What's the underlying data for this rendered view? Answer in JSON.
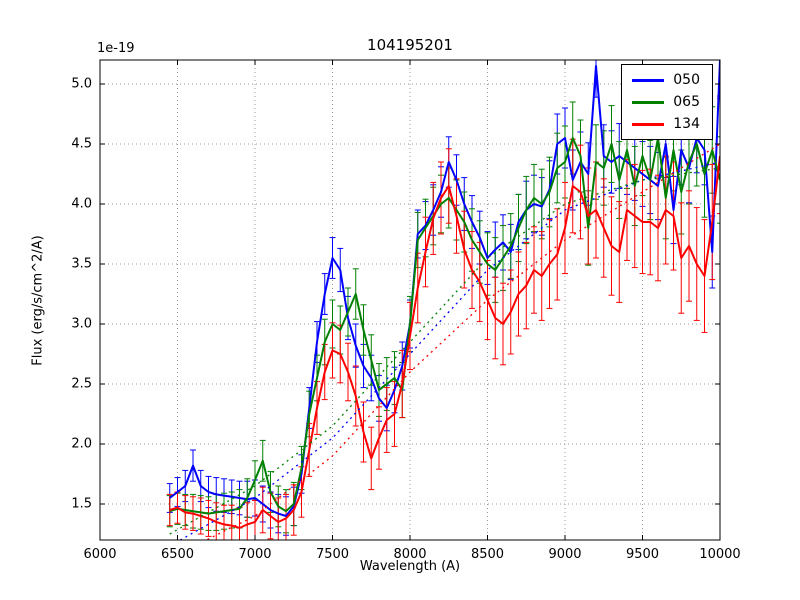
{
  "chart_data": {
    "type": "line",
    "title": "104195201",
    "xlabel": "Wavelength (A)",
    "ylabel": "Flux (erg/s/cm^2/A)",
    "offset_text": "1e-19",
    "xlim": [
      6000,
      10000
    ],
    "ylim": [
      1.2,
      5.2
    ],
    "xticks": [
      6000,
      6500,
      7000,
      7500,
      8000,
      8500,
      9000,
      9500,
      10000
    ],
    "yticks": [
      1.5,
      2.0,
      2.5,
      3.0,
      3.5,
      4.0,
      4.5,
      5.0
    ],
    "grid": true,
    "grid_color": "#9a9a9a",
    "legend_position": "upper right",
    "errorbar_capsize": 3,
    "x": [
      6450,
      6500,
      6550,
      6600,
      6650,
      6700,
      6750,
      6800,
      6850,
      6900,
      6950,
      7000,
      7050,
      7100,
      7150,
      7200,
      7250,
      7300,
      7350,
      7400,
      7450,
      7500,
      7550,
      7600,
      7650,
      7700,
      7750,
      7800,
      7850,
      7900,
      7950,
      8000,
      8050,
      8100,
      8150,
      8200,
      8250,
      8300,
      8350,
      8400,
      8450,
      8500,
      8550,
      8600,
      8650,
      8700,
      8750,
      8800,
      8850,
      8900,
      8950,
      9000,
      9050,
      9100,
      9150,
      9200,
      9250,
      9300,
      9350,
      9400,
      9450,
      9500,
      9550,
      9600,
      9650,
      9700,
      9750,
      9800,
      9850,
      9900,
      9950,
      10000
    ],
    "series": [
      {
        "name": "050",
        "color": "#0000ff",
        "values": [
          1.55,
          1.6,
          1.65,
          1.82,
          1.65,
          1.6,
          1.58,
          1.57,
          1.56,
          1.55,
          1.54,
          1.55,
          1.5,
          1.45,
          1.42,
          1.4,
          1.48,
          1.75,
          2.3,
          2.85,
          3.25,
          3.55,
          3.45,
          3.05,
          2.82,
          2.65,
          2.55,
          2.38,
          2.3,
          2.45,
          2.65,
          3.0,
          3.75,
          3.82,
          3.95,
          4.1,
          4.35,
          4.2,
          4.0,
          3.85,
          3.72,
          3.55,
          3.62,
          3.68,
          3.6,
          3.85,
          3.95,
          4.0,
          3.98,
          4.12,
          4.5,
          4.55,
          4.2,
          4.35,
          4.25,
          5.15,
          4.4,
          4.35,
          4.4,
          4.35,
          4.3,
          4.25,
          4.2,
          4.15,
          4.5,
          3.95,
          4.45,
          4.3,
          4.55,
          4.45,
          3.6,
          5.2
        ],
        "errors": [
          0.12,
          0.12,
          0.13,
          0.13,
          0.13,
          0.13,
          0.14,
          0.14,
          0.14,
          0.14,
          0.15,
          0.15,
          0.15,
          0.15,
          0.16,
          0.16,
          0.16,
          0.16,
          0.17,
          0.17,
          0.17,
          0.17,
          0.18,
          0.18,
          0.18,
          0.18,
          0.19,
          0.19,
          0.19,
          0.19,
          0.2,
          0.2,
          0.2,
          0.2,
          0.21,
          0.21,
          0.21,
          0.21,
          0.22,
          0.22,
          0.22,
          0.22,
          0.23,
          0.23,
          0.23,
          0.23,
          0.24,
          0.24,
          0.24,
          0.24,
          0.25,
          0.25,
          0.25,
          0.25,
          0.26,
          0.26,
          0.26,
          0.26,
          0.27,
          0.27,
          0.27,
          0.27,
          0.28,
          0.28,
          0.28,
          0.28,
          0.29,
          0.29,
          0.29,
          0.29,
          0.3,
          0.3
        ],
        "model": [
          [
            6450,
            1.15
          ],
          [
            7000,
            1.55
          ],
          [
            7500,
            2.05
          ],
          [
            8000,
            2.75
          ],
          [
            8500,
            3.45
          ],
          [
            9000,
            3.95
          ],
          [
            9500,
            4.2
          ],
          [
            10000,
            4.35
          ]
        ]
      },
      {
        "name": "065",
        "color": "#008000",
        "values": [
          1.44,
          1.46,
          1.45,
          1.44,
          1.43,
          1.42,
          1.43,
          1.44,
          1.45,
          1.46,
          1.55,
          1.7,
          1.86,
          1.6,
          1.48,
          1.44,
          1.5,
          1.8,
          2.25,
          2.55,
          2.85,
          3.0,
          2.95,
          3.1,
          3.25,
          2.95,
          2.7,
          2.45,
          2.5,
          2.55,
          2.45,
          3.0,
          3.7,
          3.8,
          3.9,
          4.0,
          4.05,
          3.95,
          3.85,
          3.7,
          3.6,
          3.5,
          3.45,
          3.55,
          3.65,
          3.8,
          3.95,
          4.05,
          4.0,
          4.1,
          4.3,
          4.35,
          4.55,
          4.4,
          3.8,
          4.35,
          4.3,
          4.5,
          4.2,
          4.45,
          4.15,
          4.4,
          4.2,
          4.55,
          4.05,
          4.45,
          4.1,
          4.35,
          4.5,
          4.25,
          4.45,
          4.2
        ],
        "errors": [
          0.13,
          0.13,
          0.13,
          0.14,
          0.14,
          0.14,
          0.15,
          0.15,
          0.15,
          0.16,
          0.16,
          0.16,
          0.17,
          0.17,
          0.17,
          0.18,
          0.18,
          0.18,
          0.19,
          0.19,
          0.19,
          0.2,
          0.2,
          0.2,
          0.21,
          0.21,
          0.21,
          0.22,
          0.22,
          0.22,
          0.23,
          0.23,
          0.23,
          0.24,
          0.24,
          0.24,
          0.25,
          0.25,
          0.25,
          0.26,
          0.26,
          0.26,
          0.27,
          0.27,
          0.27,
          0.28,
          0.28,
          0.28,
          0.29,
          0.29,
          0.29,
          0.3,
          0.3,
          0.3,
          0.31,
          0.31,
          0.31,
          0.32,
          0.32,
          0.32,
          0.33,
          0.33,
          0.33,
          0.34,
          0.34,
          0.34,
          0.35,
          0.35,
          0.35,
          0.36,
          0.36,
          0.36
        ],
        "model": [
          [
            6450,
            1.25
          ],
          [
            7000,
            1.65
          ],
          [
            7500,
            2.15
          ],
          [
            8000,
            2.85
          ],
          [
            8500,
            3.55
          ],
          [
            9000,
            4.0
          ],
          [
            9500,
            4.2
          ],
          [
            10000,
            4.3
          ]
        ]
      },
      {
        "name": "134",
        "color": "#ff0000",
        "values": [
          1.45,
          1.47,
          1.43,
          1.42,
          1.4,
          1.38,
          1.35,
          1.33,
          1.32,
          1.3,
          1.33,
          1.35,
          1.45,
          1.4,
          1.35,
          1.38,
          1.45,
          1.6,
          1.95,
          2.3,
          2.6,
          2.78,
          2.75,
          2.6,
          2.4,
          2.1,
          1.88,
          2.05,
          2.2,
          2.25,
          2.5,
          2.9,
          3.3,
          3.6,
          3.88,
          4.05,
          4.15,
          3.9,
          3.62,
          3.45,
          3.35,
          3.2,
          3.05,
          3.0,
          3.1,
          3.25,
          3.32,
          3.45,
          3.4,
          3.5,
          3.58,
          3.8,
          4.15,
          4.1,
          3.9,
          3.95,
          3.8,
          3.65,
          3.6,
          3.95,
          3.9,
          3.85,
          3.85,
          3.8,
          3.95,
          3.9,
          3.55,
          3.65,
          3.5,
          3.4,
          3.85,
          4.4
        ],
        "errors": [
          0.13,
          0.13,
          0.14,
          0.14,
          0.15,
          0.15,
          0.16,
          0.16,
          0.17,
          0.17,
          0.18,
          0.18,
          0.19,
          0.19,
          0.2,
          0.2,
          0.21,
          0.21,
          0.22,
          0.22,
          0.23,
          0.23,
          0.24,
          0.24,
          0.25,
          0.25,
          0.26,
          0.26,
          0.27,
          0.27,
          0.28,
          0.28,
          0.29,
          0.29,
          0.3,
          0.3,
          0.31,
          0.31,
          0.32,
          0.32,
          0.33,
          0.33,
          0.34,
          0.34,
          0.35,
          0.35,
          0.36,
          0.36,
          0.37,
          0.37,
          0.38,
          0.38,
          0.39,
          0.39,
          0.4,
          0.4,
          0.41,
          0.41,
          0.42,
          0.42,
          0.43,
          0.43,
          0.44,
          0.44,
          0.45,
          0.45,
          0.46,
          0.46,
          0.47,
          0.47,
          0.48,
          0.48
        ],
        "model": [
          [
            6450,
            1.05
          ],
          [
            7000,
            1.4
          ],
          [
            7500,
            1.9
          ],
          [
            8000,
            2.6
          ],
          [
            8500,
            3.2
          ],
          [
            9000,
            3.7
          ],
          [
            9500,
            4.1
          ],
          [
            10000,
            4.5
          ]
        ]
      }
    ]
  }
}
